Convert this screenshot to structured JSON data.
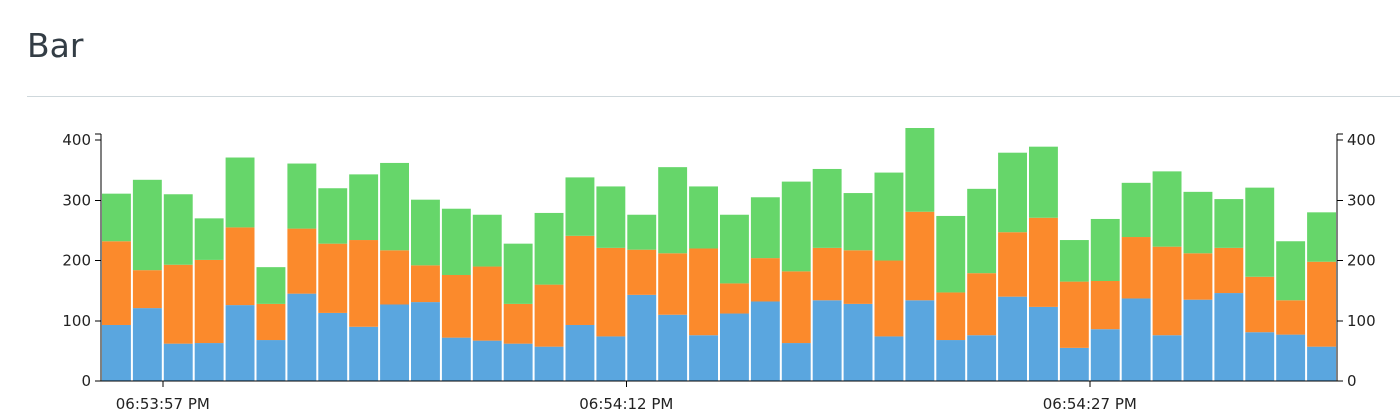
{
  "page": {
    "title": "Bar"
  },
  "chart_data": {
    "type": "bar",
    "stacked": true,
    "colors": [
      "#5aa6df",
      "#fb8a2c",
      "#66d66a"
    ],
    "ylim": [
      0,
      420
    ],
    "y_ticks": [
      0,
      100,
      200,
      300,
      400
    ],
    "x_tick_labels": [
      {
        "index": 1.5,
        "label": "06:53:57 PM"
      },
      {
        "index": 16.5,
        "label": "06:54:12 PM"
      },
      {
        "index": 31.5,
        "label": "06:54:27 PM"
      }
    ],
    "y_axes": [
      "left",
      "right"
    ],
    "series": [
      {
        "values": [
          93,
          121,
          62,
          63,
          126,
          68,
          145,
          113,
          90,
          127,
          131,
          72,
          67,
          62,
          57,
          93,
          74,
          143,
          110,
          76,
          112,
          132,
          63,
          134,
          128,
          74,
          134,
          68,
          76,
          140,
          123,
          55,
          86,
          137,
          76,
          135,
          146,
          81,
          77,
          57
        ]
      },
      {
        "values": [
          139,
          63,
          131,
          138,
          129,
          60,
          108,
          115,
          144,
          90,
          61,
          104,
          123,
          66,
          103,
          148,
          147,
          75,
          102,
          144,
          50,
          72,
          119,
          87,
          89,
          126,
          147,
          79,
          103,
          107,
          148,
          110,
          80,
          102,
          147,
          77,
          75,
          92,
          57,
          141
        ]
      },
      {
        "values": [
          79,
          150,
          117,
          69,
          116,
          61,
          108,
          92,
          109,
          145,
          109,
          110,
          86,
          100,
          119,
          97,
          102,
          58,
          143,
          103,
          114,
          101,
          149,
          131,
          95,
          146,
          139,
          127,
          140,
          132,
          118,
          69,
          103,
          90,
          125,
          102,
          81,
          148,
          98,
          82
        ]
      }
    ]
  }
}
